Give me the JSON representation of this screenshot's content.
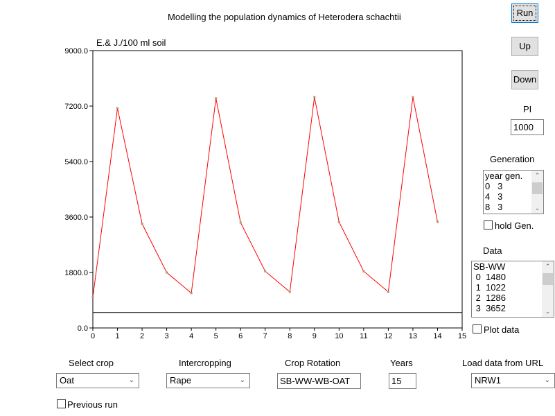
{
  "title": "Modelling the population dynamics of Heterodera schachtii",
  "buttons": {
    "run": "Run",
    "up": "Up",
    "down": "Down"
  },
  "pi": {
    "label": "PI",
    "value": "1000"
  },
  "generation": {
    "label": "Generation",
    "rows": [
      "year gen.",
      "0   3",
      "4   3",
      "8   3"
    ],
    "hold_label": "hold Gen."
  },
  "data_list": {
    "label": "Data",
    "rows": [
      "SB-WW",
      " 0  1480",
      " 1  1022",
      " 2  1286",
      " 3  3652"
    ],
    "plot_label": "Plot data"
  },
  "controls": {
    "select_crop": {
      "label": "Select crop",
      "value": "Oat"
    },
    "intercropping": {
      "label": "Intercropping",
      "value": "Rape"
    },
    "crop_rotation": {
      "label": "Crop Rotation",
      "value": "SB-WW-WB-OAT"
    },
    "years": {
      "label": "Years",
      "value": "15"
    },
    "load_url": {
      "label": "Load data from URL",
      "value": "NRW1"
    },
    "previous_run": "Previous run"
  },
  "chart_data": {
    "type": "line",
    "ylabel": "E.& J./100 ml soil",
    "xlim": [
      0,
      15
    ],
    "ylim": [
      0,
      9000
    ],
    "yticks": [
      "0.0",
      "1800.0",
      "3600.0",
      "5400.0",
      "7200.0",
      "9000.0"
    ],
    "xticks": [
      "0",
      "1",
      "2",
      "3",
      "4",
      "5",
      "6",
      "7",
      "8",
      "9",
      "10",
      "11",
      "12",
      "13",
      "14",
      "15"
    ],
    "x": [
      0,
      1,
      2,
      3,
      4,
      5,
      6,
      7,
      8,
      9,
      10,
      11,
      12,
      13,
      14
    ],
    "values": [
      1000,
      7130,
      3380,
      1800,
      1130,
      7450,
      3420,
      1840,
      1170,
      7490,
      3440,
      1840,
      1170,
      7490,
      3440
    ],
    "threshold": 500,
    "line_color": "#ff0000",
    "marker_color": "#a89878"
  }
}
